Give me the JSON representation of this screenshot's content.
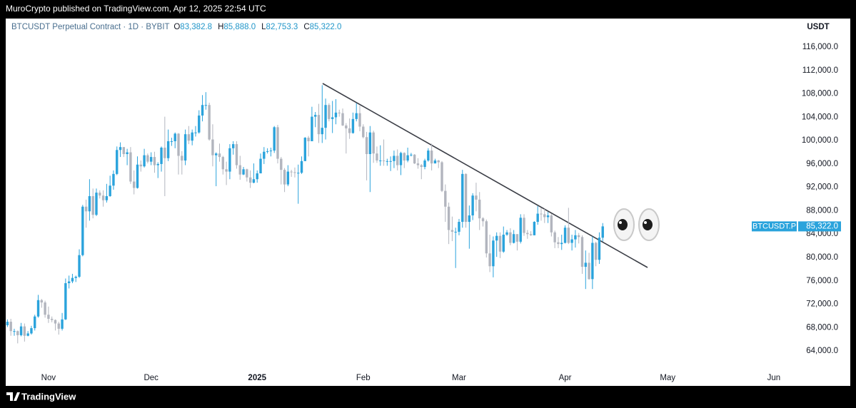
{
  "header": {
    "publisher": "MuroCrypto published on TradingView.com, Apr 12, 2025 22:54 UTC"
  },
  "footer": {
    "brand": "TradingView"
  },
  "chart_data": {
    "type": "candlestick",
    "title": "BTCUSDT Perpetual Contract · 1D · BYBIT",
    "ohlc_legend": [
      {
        "key": "O",
        "value": 83382.8,
        "label": "83,382.8"
      },
      {
        "key": "H",
        "value": 85888,
        "label": "85,888.0"
      },
      {
        "key": "L",
        "value": 82753.3,
        "label": "82,753.3"
      },
      {
        "key": "C",
        "value": 85322,
        "label": "85,322.0"
      }
    ],
    "currency": "USDT",
    "up_color": "#2aa3dc",
    "down_color": "#b2b5be",
    "grid": false,
    "ylim": [
      60950,
      120900
    ],
    "yticks": [
      {
        "value": 64000,
        "label": "64,000.0"
      },
      {
        "value": 68000,
        "label": "68,000.0"
      },
      {
        "value": 72000,
        "label": "72,000.0"
      },
      {
        "value": 76000,
        "label": "76,000.0"
      },
      {
        "value": 80000,
        "label": "80,000.0"
      },
      {
        "value": 84000,
        "label": "84,000.0"
      },
      {
        "value": 88000,
        "label": "88,000.0"
      },
      {
        "value": 92000,
        "label": "92,000.0"
      },
      {
        "value": 96000,
        "label": "96,000.0"
      },
      {
        "value": 100000,
        "label": "100,000.0"
      },
      {
        "value": 104000,
        "label": "104,000.0"
      },
      {
        "value": 108000,
        "label": "108,000.0"
      },
      {
        "value": 112000,
        "label": "112,000.0"
      },
      {
        "value": 116000,
        "label": "116,000.0"
      }
    ],
    "last_price": {
      "symbol": "BTCUSDT.P",
      "value": 85322,
      "label": "85,322.0"
    },
    "categories": [
      null,
      null,
      null,
      null,
      null,
      null,
      null,
      null,
      null,
      null,
      null,
      null,
      "Nov",
      null,
      null,
      null,
      null,
      null,
      null,
      null,
      null,
      null,
      null,
      null,
      null,
      null,
      null,
      null,
      null,
      null,
      null,
      null,
      null,
      null,
      null,
      null,
      null,
      null,
      null,
      null,
      null,
      null,
      "Dec",
      null,
      null,
      null,
      null,
      null,
      null,
      null,
      null,
      null,
      null,
      null,
      null,
      null,
      null,
      null,
      null,
      null,
      null,
      null,
      null,
      null,
      null,
      null,
      null,
      null,
      null,
      null,
      null,
      null,
      null,
      "2025",
      null,
      null,
      null,
      null,
      null,
      null,
      null,
      null,
      null,
      null,
      null,
      null,
      null,
      null,
      null,
      null,
      null,
      null,
      null,
      null,
      null,
      null,
      null,
      null,
      null,
      null,
      null,
      null,
      null,
      null,
      "Feb",
      null,
      null,
      null,
      null,
      null,
      null,
      null,
      null,
      null,
      null,
      null,
      null,
      null,
      null,
      null,
      null,
      null,
      null,
      null,
      null,
      null,
      null,
      null,
      null,
      null,
      null,
      null,
      "Mar",
      null,
      null,
      null,
      null,
      null,
      null,
      null,
      null,
      null,
      null,
      null,
      null,
      null,
      null,
      null,
      null,
      null,
      null,
      null,
      null,
      null,
      null,
      null,
      null,
      null,
      null,
      null,
      null,
      null,
      null,
      "Apr",
      null,
      null,
      null,
      null,
      null,
      null,
      null,
      null,
      null,
      null,
      null,
      null,
      null,
      null,
      null,
      null,
      null,
      null,
      null,
      null,
      null,
      null,
      null,
      null,
      null,
      null,
      null,
      null,
      null,
      "May",
      null,
      null,
      null,
      null,
      null,
      null,
      null,
      null,
      null,
      null,
      null,
      null,
      null,
      null,
      null,
      null,
      null,
      null,
      null,
      null,
      null,
      null,
      null,
      null,
      null,
      null,
      null,
      null,
      null,
      null,
      "Jun",
      null,
      null,
      null,
      null,
      null,
      null
    ],
    "open": [
      68400,
      69000,
      67400,
      67400,
      66700,
      68200,
      66600,
      67000,
      67900,
      69900,
      72700,
      72300,
      70200,
      69500,
      69300,
      68700,
      67800,
      69400,
      75600,
      75900,
      76500,
      76700,
      80400,
      88700,
      87900,
      90500,
      87300,
      91100,
      90600,
      89800,
      90500,
      92300,
      94300,
      98400,
      98900,
      97700,
      98000,
      93000,
      91900,
      95900,
      95600,
      97500,
      96400,
      97200,
      95800,
      96000,
      98800,
      97000,
      99900,
      99900,
      101200,
      97400,
      96600,
      101100,
      100000,
      101400,
      101400,
      104300,
      106100,
      106100,
      100200,
      97500,
      97800,
      97200,
      95100,
      94700,
      98700,
      99400,
      95800,
      94200,
      95100,
      93700,
      92800,
      93400,
      94400,
      96900,
      98100,
      98200,
      98300,
      102300,
      96900,
      95000,
      92500,
      94700,
      94600,
      94500,
      94500,
      96500,
      100500,
      99900,
      104100,
      104400,
      101100,
      102200,
      106100,
      103700,
      104000,
      104800,
      104700,
      102600,
      102100,
      101300,
      103700,
      104700,
      102400,
      100600,
      97700,
      101400,
      97800,
      96600,
      96600,
      96500,
      96500,
      96500,
      97400,
      95800,
      97900,
      96600,
      97500,
      97600,
      96100,
      95800,
      95500,
      96600,
      98300,
      96100,
      96600,
      96300,
      91400,
      88700,
      84700,
      84400,
      84400,
      86100,
      94300,
      86100,
      87200,
      90600,
      89900,
      86700,
      86200,
      80700,
      78500,
      82900,
      83700,
      81000,
      83900,
      84300,
      82500,
      84000,
      82700,
      86800,
      84200,
      84000,
      83800,
      86100,
      87500,
      87400,
      86900,
      87200,
      84300,
      82600,
      82300,
      82500,
      85100,
      82500,
      83100,
      83800,
      83500,
      78400,
      79100,
      76300,
      82500,
      79600,
      83382.8,
      null,
      null,
      null,
      null,
      null,
      null,
      null,
      null,
      null,
      null,
      null,
      null,
      null,
      null,
      null,
      null,
      null,
      null,
      null,
      null,
      null,
      null,
      null,
      null,
      null,
      null,
      null,
      null,
      null,
      null,
      null,
      null,
      null,
      null,
      null,
      null,
      null,
      null,
      null,
      null,
      null,
      null,
      null,
      null,
      null,
      null,
      null,
      null,
      null,
      null,
      null,
      null,
      null,
      null,
      null,
      null
    ],
    "high": [
      69400,
      69500,
      67800,
      67500,
      68800,
      68700,
      67400,
      68300,
      70200,
      73600,
      72900,
      72600,
      71600,
      69900,
      69400,
      69000,
      70500,
      76400,
      76900,
      77200,
      76900,
      81400,
      89000,
      89900,
      93400,
      91800,
      91800,
      91500,
      91500,
      92600,
      94000,
      94900,
      99000,
      99700,
      98900,
      98600,
      98900,
      94900,
      97300,
      96600,
      98600,
      97800,
      98000,
      98100,
      96300,
      99000,
      104100,
      101900,
      100500,
      101400,
      101300,
      98200,
      101900,
      102500,
      101900,
      102500,
      105200,
      107800,
      108300,
      106500,
      102800,
      98000,
      99500,
      97400,
      96400,
      99400,
      99900,
      99900,
      97400,
      95500,
      95200,
      94900,
      96100,
      94900,
      97800,
      98900,
      98700,
      98800,
      102500,
      102700,
      97200,
      95300,
      95800,
      95000,
      95400,
      95900,
      97300,
      100600,
      100800,
      105800,
      104900,
      106300,
      109500,
      107200,
      106400,
      106800,
      107100,
      105300,
      105500,
      103000,
      103800,
      104800,
      106400,
      106000,
      102800,
      101500,
      102500,
      101700,
      99000,
      99200,
      100200,
      96900,
      97300,
      98300,
      98500,
      98100,
      98000,
      98800,
      97900,
      97700,
      97000,
      96000,
      96900,
      98700,
      99500,
      96900,
      96700,
      96500,
      92500,
      89400,
      87000,
      85100,
      86600,
      95000,
      94400,
      88900,
      91000,
      92800,
      91200,
      86900,
      86500,
      83900,
      83600,
      84300,
      84300,
      85300,
      84700,
      85000,
      84700,
      84000,
      87400,
      87400,
      84700,
      84500,
      86200,
      88800,
      88500,
      88300,
      87800,
      87500,
      84600,
      83500,
      83900,
      85500,
      88500,
      83900,
      84700,
      84200,
      83800,
      81200,
      80800,
      83600,
      82700,
      84300,
      85888,
      null,
      null,
      null,
      null,
      null,
      null,
      null,
      null,
      null,
      null,
      null,
      null,
      null,
      null,
      null,
      null,
      null,
      null,
      null,
      null,
      null,
      null,
      null,
      null,
      null,
      null,
      null,
      null,
      null,
      null,
      null,
      null,
      null,
      null,
      null,
      null,
      null,
      null,
      null,
      null,
      null,
      null,
      null,
      null,
      null,
      null,
      null,
      null,
      null,
      null,
      null,
      null,
      null,
      null,
      null,
      null
    ],
    "low": [
      68100,
      66600,
      66600,
      65300,
      66500,
      65600,
      66500,
      66800,
      67500,
      69700,
      71400,
      69700,
      68800,
      68900,
      67500,
      66800,
      67500,
      69300,
      74700,
      75600,
      75800,
      76500,
      80200,
      85100,
      86300,
      86700,
      87100,
      90100,
      88700,
      89400,
      90400,
      91600,
      94100,
      97200,
      97200,
      95800,
      92600,
      90800,
      91800,
      94700,
      95400,
      96100,
      95800,
      94500,
      93600,
      94700,
      90500,
      96500,
      99100,
      98700,
      94200,
      94200,
      95800,
      99400,
      99200,
      100700,
      101200,
      103300,
      105300,
      100000,
      95600,
      92200,
      96400,
      94200,
      92400,
      93400,
      97600,
      95200,
      93300,
      94100,
      93000,
      91900,
      92700,
      92800,
      94400,
      96000,
      97800,
      97300,
      97900,
      96100,
      92500,
      91200,
      92200,
      93800,
      93700,
      89200,
      94300,
      96500,
      97300,
      99900,
      102300,
      99600,
      99600,
      100200,
      103300,
      101300,
      102800,
      104100,
      102500,
      97800,
      100300,
      101200,
      103300,
      101600,
      100400,
      93200,
      91200,
      96200,
      96200,
      95700,
      95700,
      95700,
      94800,
      95300,
      94900,
      94100,
      95300,
      96300,
      97300,
      96000,
      95200,
      93400,
      95100,
      96400,
      94900,
      96100,
      95300,
      91200,
      86100,
      82300,
      82800,
      78200,
      83800,
      85100,
      85100,
      81500,
      86400,
      87900,
      84700,
      85300,
      80000,
      77500,
      76600,
      80100,
      79900,
      80800,
      83700,
      82100,
      82400,
      81200,
      82400,
      83700,
      83200,
      83700,
      83800,
      85600,
      86300,
      85900,
      85900,
      83600,
      81600,
      81600,
      81300,
      82400,
      82300,
      81200,
      81700,
      82400,
      77200,
      74600,
      76200,
      74600,
      78500,
      78900,
      82753.3,
      null,
      null,
      null,
      null,
      null,
      null,
      null,
      null,
      null,
      null,
      null,
      null,
      null,
      null,
      null,
      null,
      null,
      null,
      null,
      null,
      null,
      null,
      null,
      null,
      null,
      null,
      null,
      null,
      null,
      null,
      null,
      null,
      null,
      null,
      null,
      null,
      null,
      null,
      null,
      null,
      null,
      null,
      null,
      null,
      null,
      null,
      null,
      null,
      null,
      null,
      null,
      null,
      null,
      null,
      null,
      null
    ],
    "close": [
      69000,
      67400,
      67400,
      66700,
      68200,
      66600,
      67000,
      67900,
      69900,
      72700,
      72300,
      70200,
      69500,
      69300,
      68700,
      67800,
      69400,
      75600,
      75900,
      76500,
      76700,
      80400,
      88700,
      87900,
      90500,
      87300,
      91100,
      90600,
      89800,
      90500,
      92300,
      94300,
      98400,
      98900,
      97700,
      98000,
      93000,
      91900,
      95900,
      95600,
      97500,
      96400,
      97200,
      95800,
      96000,
      98800,
      97000,
      99900,
      99900,
      101200,
      97400,
      96600,
      101100,
      100000,
      101400,
      101400,
      104300,
      106100,
      106100,
      100200,
      97500,
      97800,
      97200,
      95100,
      94700,
      98700,
      99400,
      95800,
      94200,
      95100,
      93700,
      92800,
      93400,
      94400,
      96900,
      98100,
      98200,
      98300,
      102300,
      96900,
      95000,
      92500,
      94700,
      94600,
      94500,
      94500,
      96500,
      100500,
      99900,
      104100,
      104400,
      101100,
      102200,
      106100,
      103700,
      104000,
      104800,
      104700,
      102600,
      102100,
      101300,
      103700,
      104700,
      102400,
      100600,
      97700,
      101400,
      97800,
      96600,
      96600,
      96500,
      96500,
      96500,
      97400,
      95800,
      97900,
      96600,
      97500,
      97600,
      96100,
      95800,
      95500,
      96600,
      98300,
      96100,
      96600,
      96300,
      91400,
      88700,
      84700,
      84400,
      84400,
      86100,
      94300,
      86100,
      87200,
      90600,
      89900,
      86700,
      86200,
      80700,
      78500,
      82900,
      83700,
      81000,
      83900,
      84300,
      82500,
      84000,
      82700,
      86800,
      84200,
      84000,
      83800,
      86100,
      87500,
      87400,
      86900,
      87200,
      84300,
      82600,
      82300,
      82500,
      85100,
      82500,
      83100,
      83800,
      83500,
      78400,
      79100,
      76300,
      82500,
      79600,
      83400,
      85322,
      null,
      null,
      null,
      null,
      null,
      null,
      null,
      null,
      null,
      null,
      null,
      null,
      null,
      null,
      null,
      null,
      null,
      null,
      null,
      null,
      null,
      null,
      null,
      null,
      null,
      null,
      null,
      null,
      null,
      null,
      null,
      null,
      null,
      null,
      null,
      null,
      null,
      null,
      null,
      null,
      null,
      null,
      null,
      null,
      null,
      null,
      null,
      null,
      null,
      null,
      null,
      null,
      null,
      null,
      null,
      null
    ]
  }
}
